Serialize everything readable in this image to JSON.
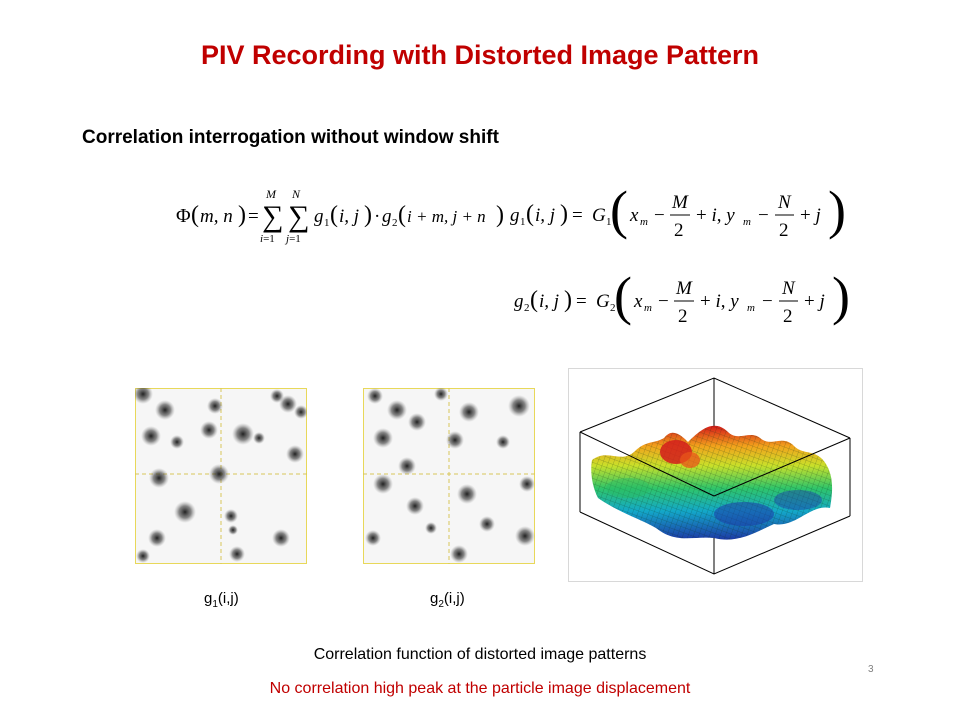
{
  "slide": {
    "title": "PIV Recording with Distorted Image Pattern",
    "subtitle": "Correlation interrogation without window shift",
    "caption_corr": "Correlation function of distorted image patterns",
    "caption_note": "No correlation high peak at the particle image displacement",
    "slide_number": "3"
  },
  "images": {
    "g1_label": "g",
    "g1_sub": "1",
    "g1_args": "(i,j)",
    "g2_label": "g",
    "g2_sub": "2",
    "g2_args": "(i,j)"
  },
  "colors": {
    "title": "#c00000",
    "note": "#c00000",
    "window_border": "#e8d85a"
  }
}
